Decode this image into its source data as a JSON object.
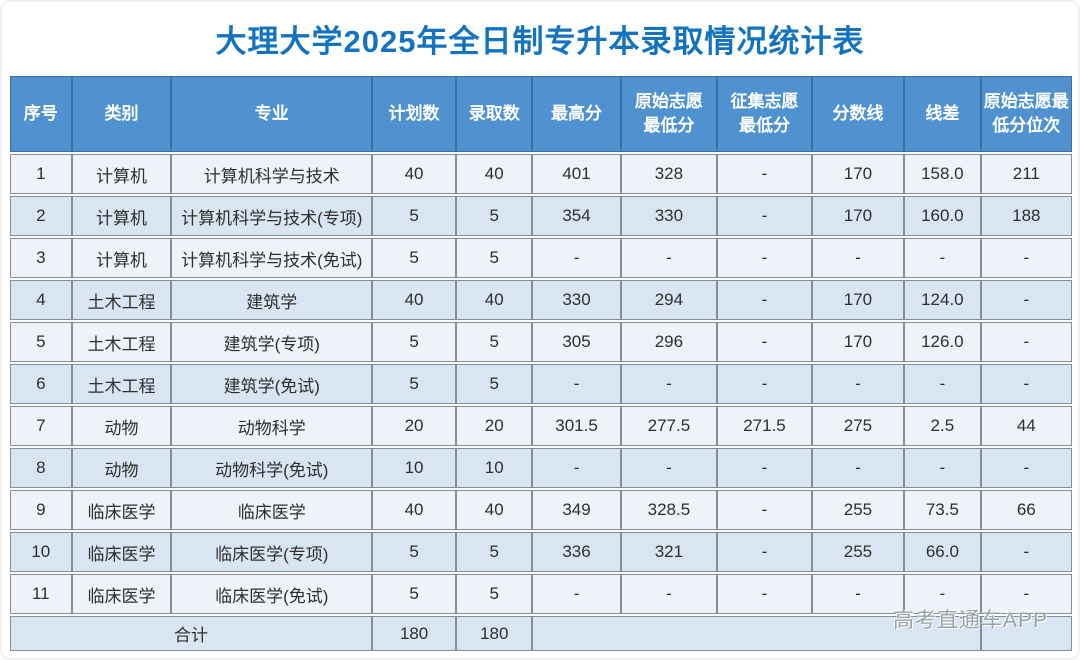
{
  "title": "大理大学2025年全日制专升本录取情况统计表",
  "watermark": "高考直通车APP",
  "colors": {
    "header_bg": "#5092D0",
    "title_text": "#1373BF",
    "row_light": "#EEF3F9",
    "row_blue": "#D9E5F2",
    "grid_border": "#848D99"
  },
  "table": {
    "columns": [
      {
        "key": "index",
        "label": "序号"
      },
      {
        "key": "category",
        "label": "类别"
      },
      {
        "key": "major",
        "label": "专业"
      },
      {
        "key": "plan-count",
        "label": "计划数"
      },
      {
        "key": "admit-count",
        "label": "录取数"
      },
      {
        "key": "max-score",
        "label": "最高分"
      },
      {
        "key": "first-choice-min",
        "label": "原始志愿\n最低分"
      },
      {
        "key": "supplementary-min",
        "label": "征集志愿\n最低分"
      },
      {
        "key": "cutoff-line",
        "label": "分数线"
      },
      {
        "key": "score-diff",
        "label": "线差"
      },
      {
        "key": "first-choice-min-rank",
        "label": "原始志愿最\n低分位次"
      }
    ],
    "rows": [
      [
        "1",
        "计算机",
        "计算机科学与技术",
        "40",
        "40",
        "401",
        "328",
        "-",
        "170",
        "158.0",
        "211"
      ],
      [
        "2",
        "计算机",
        "计算机科学与技术(专项)",
        "5",
        "5",
        "354",
        "330",
        "-",
        "170",
        "160.0",
        "188"
      ],
      [
        "3",
        "计算机",
        "计算机科学与技术(免试)",
        "5",
        "5",
        "-",
        "-",
        "-",
        "-",
        "-",
        "-"
      ],
      [
        "4",
        "土木工程",
        "建筑学",
        "40",
        "40",
        "330",
        "294",
        "-",
        "170",
        "124.0",
        "-"
      ],
      [
        "5",
        "土木工程",
        "建筑学(专项)",
        "5",
        "5",
        "305",
        "296",
        "-",
        "170",
        "126.0",
        "-"
      ],
      [
        "6",
        "土木工程",
        "建筑学(免试)",
        "5",
        "5",
        "-",
        "-",
        "-",
        "-",
        "-",
        "-"
      ],
      [
        "7",
        "动物",
        "动物科学",
        "20",
        "20",
        "301.5",
        "277.5",
        "271.5",
        "275",
        "2.5",
        "44"
      ],
      [
        "8",
        "动物",
        "动物科学(免试)",
        "10",
        "10",
        "-",
        "-",
        "-",
        "-",
        "-",
        "-"
      ],
      [
        "9",
        "临床医学",
        "临床医学",
        "40",
        "40",
        "349",
        "328.5",
        "-",
        "255",
        "73.5",
        "66"
      ],
      [
        "10",
        "临床医学",
        "临床医学(专项)",
        "5",
        "5",
        "336",
        "321",
        "-",
        "255",
        "66.0",
        "-"
      ],
      [
        "11",
        "临床医学",
        "临床医学(免试)",
        "5",
        "5",
        "-",
        "-",
        "-",
        "-",
        "-",
        "-"
      ]
    ],
    "total": {
      "label": "合计",
      "plan_count": "180",
      "admit_count": "180"
    }
  }
}
